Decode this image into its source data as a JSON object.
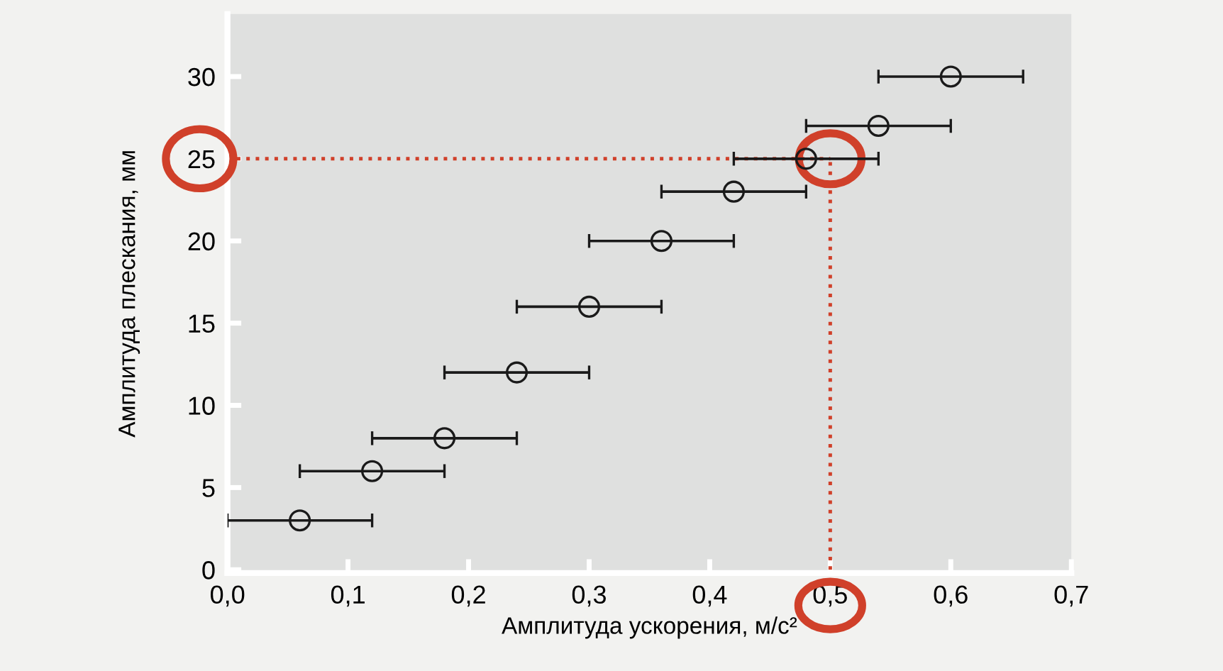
{
  "chart_data": {
    "type": "scatter",
    "xlabel": "Амплитуда ускорения, м/с²",
    "ylabel": "Амплитуда плескания, мм",
    "x": [
      0.06,
      0.12,
      0.18,
      0.24,
      0.3,
      0.36,
      0.42,
      0.48,
      0.54,
      0.6
    ],
    "series": [
      {
        "color": "#1a1a1a",
        "values": [
          3,
          6,
          8,
          12,
          16,
          20,
          23,
          25,
          27,
          30
        ],
        "xerrors": [
          0.06,
          0.06,
          0.06,
          0.06,
          0.06,
          0.06,
          0.06,
          0.06,
          0.06,
          0.06
        ]
      }
    ],
    "marker": "circle",
    "xlim": [
      0,
      0.7
    ],
    "xticks": [
      {
        "value": 0,
        "label": "0,0"
      },
      {
        "value": 0.1,
        "label": "0,1"
      },
      {
        "value": 0.2,
        "label": "0,2"
      },
      {
        "value": 0.3,
        "label": "0,3"
      },
      {
        "value": 0.4,
        "label": "0,4"
      },
      {
        "value": 0.5,
        "label": "0,5"
      },
      {
        "value": 0.6,
        "label": "0,6"
      },
      {
        "value": 0.7,
        "label": "0,7"
      }
    ],
    "ylim": [
      -0.2,
      33.8
    ],
    "yticks": [
      0,
      5,
      10,
      15,
      20,
      25,
      30
    ],
    "ref_lines": [
      {
        "axis": "y",
        "value": 25,
        "color": "#d0402a",
        "line_style": "dotted"
      },
      {
        "axis": "x",
        "value": 0.5,
        "color": "#d0402a",
        "line_style": "dotted"
      }
    ],
    "grid": false
  }
}
